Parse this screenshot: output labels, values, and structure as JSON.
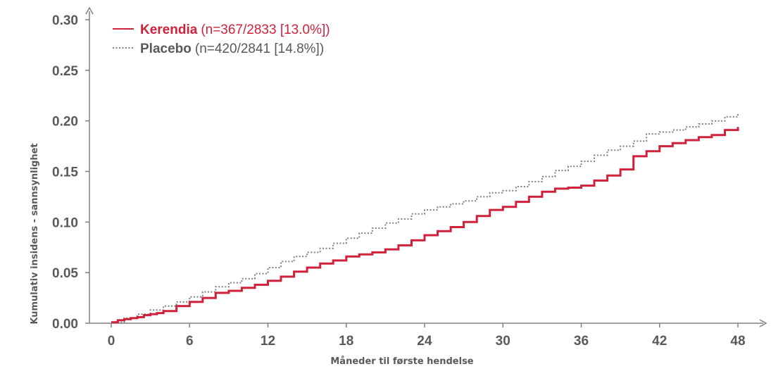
{
  "chart_data": {
    "type": "line",
    "title": "",
    "xlabel": "Måneder til første hendelse",
    "ylabel": "Kumulativ insidens - sannsynlighet",
    "xlim": [
      0,
      50
    ],
    "ylim": [
      0,
      0.3
    ],
    "x_ticks": [
      "0",
      "6",
      "12",
      "18",
      "24",
      "30",
      "36",
      "42",
      "48"
    ],
    "y_ticks": [
      "0.00",
      "0.05",
      "0.10",
      "0.15",
      "0.20",
      "0.25",
      "0.30"
    ],
    "legend_position": "top-left",
    "grid": false,
    "series": [
      {
        "name": "Kerendia",
        "detail": "(n=367/2833 [13.0%])",
        "color": "#d0213b",
        "style": "solid",
        "points": [
          [
            0,
            0.001
          ],
          [
            0.5,
            0.003
          ],
          [
            1,
            0.004
          ],
          [
            1.5,
            0.005
          ],
          [
            2,
            0.006
          ],
          [
            2.5,
            0.008
          ],
          [
            3,
            0.009
          ],
          [
            3.5,
            0.01
          ],
          [
            4,
            0.012
          ],
          [
            5,
            0.017
          ],
          [
            6,
            0.021
          ],
          [
            7,
            0.025
          ],
          [
            8,
            0.03
          ],
          [
            9,
            0.032
          ],
          [
            10,
            0.035
          ],
          [
            11,
            0.038
          ],
          [
            12,
            0.042
          ],
          [
            13,
            0.046
          ],
          [
            14,
            0.051
          ],
          [
            15,
            0.055
          ],
          [
            16,
            0.059
          ],
          [
            17,
            0.062
          ],
          [
            18,
            0.066
          ],
          [
            19,
            0.068
          ],
          [
            20,
            0.07
          ],
          [
            21,
            0.073
          ],
          [
            22,
            0.077
          ],
          [
            23,
            0.082
          ],
          [
            24,
            0.087
          ],
          [
            25,
            0.091
          ],
          [
            26,
            0.095
          ],
          [
            27,
            0.1
          ],
          [
            28,
            0.106
          ],
          [
            29,
            0.112
          ],
          [
            30,
            0.115
          ],
          [
            31,
            0.12
          ],
          [
            32,
            0.125
          ],
          [
            33,
            0.13
          ],
          [
            34,
            0.133
          ],
          [
            35,
            0.134
          ],
          [
            36,
            0.136
          ],
          [
            37,
            0.141
          ],
          [
            38,
            0.146
          ],
          [
            39,
            0.152
          ],
          [
            40,
            0.165
          ],
          [
            41,
            0.17
          ],
          [
            42,
            0.175
          ],
          [
            43,
            0.178
          ],
          [
            44,
            0.181
          ],
          [
            45,
            0.184
          ],
          [
            46,
            0.186
          ],
          [
            47,
            0.191
          ],
          [
            48,
            0.194
          ]
        ]
      },
      {
        "name": "Placebo",
        "detail": "(n=420/2841 [14.8%])",
        "color": "#7f7f7f",
        "style": "dotted",
        "points": [
          [
            0,
            0.001
          ],
          [
            1,
            0.005
          ],
          [
            2,
            0.009
          ],
          [
            3,
            0.013
          ],
          [
            4,
            0.017
          ],
          [
            5,
            0.021
          ],
          [
            6,
            0.026
          ],
          [
            7,
            0.031
          ],
          [
            8,
            0.036
          ],
          [
            9,
            0.04
          ],
          [
            10,
            0.044
          ],
          [
            11,
            0.049
          ],
          [
            12,
            0.055
          ],
          [
            13,
            0.061
          ],
          [
            14,
            0.066
          ],
          [
            15,
            0.07
          ],
          [
            16,
            0.074
          ],
          [
            17,
            0.079
          ],
          [
            18,
            0.084
          ],
          [
            19,
            0.089
          ],
          [
            20,
            0.094
          ],
          [
            21,
            0.099
          ],
          [
            22,
            0.103
          ],
          [
            23,
            0.108
          ],
          [
            24,
            0.112
          ],
          [
            25,
            0.115
          ],
          [
            26,
            0.118
          ],
          [
            27,
            0.121
          ],
          [
            28,
            0.125
          ],
          [
            29,
            0.129
          ],
          [
            30,
            0.131
          ],
          [
            31,
            0.135
          ],
          [
            32,
            0.14
          ],
          [
            33,
            0.145
          ],
          [
            34,
            0.151
          ],
          [
            35,
            0.155
          ],
          [
            36,
            0.16
          ],
          [
            37,
            0.166
          ],
          [
            38,
            0.171
          ],
          [
            39,
            0.175
          ],
          [
            40,
            0.18
          ],
          [
            41,
            0.187
          ],
          [
            42,
            0.189
          ],
          [
            43,
            0.191
          ],
          [
            44,
            0.194
          ],
          [
            45,
            0.197
          ],
          [
            46,
            0.2
          ],
          [
            47,
            0.204
          ],
          [
            48,
            0.208
          ]
        ]
      }
    ]
  }
}
